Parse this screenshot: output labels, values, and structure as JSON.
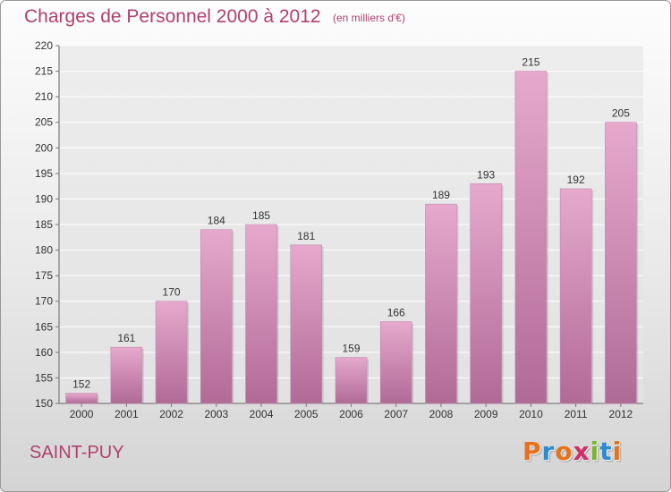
{
  "header": {
    "title": "Charges de Personnel 2000 à 2012",
    "subtitle": "(en milliers d'€)"
  },
  "footer": {
    "commune": "SAINT-PUY",
    "logo_text": "Proxiti",
    "logo_colors": [
      "#e8711b",
      "#2f8ad1",
      "#e8711b",
      "#d42b6b",
      "#7ab532",
      "#2f8ad1",
      "#e8711b"
    ]
  },
  "colors": {
    "accent": "#b0406e",
    "bar_top": "#e6a9cd",
    "bar_bottom": "#b06a96"
  },
  "chart_data": {
    "type": "bar",
    "title": "Charges de Personnel 2000 à 2012",
    "subtitle": "(en milliers d'€)",
    "categories": [
      "2000",
      "2001",
      "2002",
      "2003",
      "2004",
      "2005",
      "2006",
      "2007",
      "2008",
      "2009",
      "2010",
      "2011",
      "2012"
    ],
    "values": [
      152,
      161,
      170,
      184,
      185,
      181,
      159,
      166,
      189,
      193,
      215,
      192,
      205
    ],
    "ylim": [
      150,
      220
    ],
    "yticks": [
      150,
      155,
      160,
      165,
      170,
      175,
      180,
      185,
      190,
      195,
      200,
      205,
      210,
      215,
      220
    ],
    "grid": true,
    "data_labels": true,
    "xlabel": "",
    "ylabel": ""
  }
}
